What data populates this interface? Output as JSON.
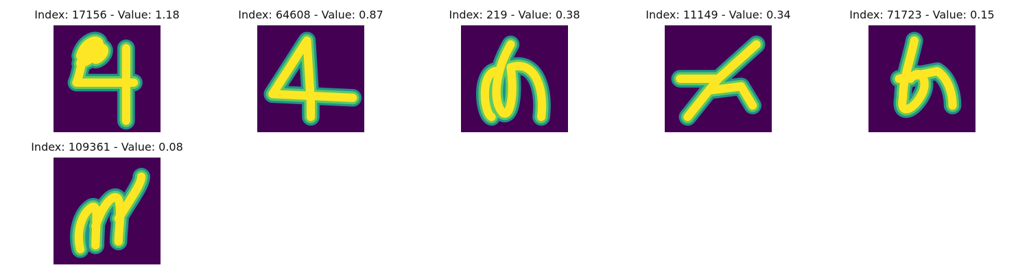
{
  "colors": {
    "background": "#440154",
    "glow_outer": "#21918c",
    "glow_mid": "#5ec962",
    "stroke": "#fde725"
  },
  "panels": [
    {
      "title": "Index: 17156 - Value: 1.18",
      "glyph": "handwritten-4-with-loop"
    },
    {
      "title": "Index: 64608 - Value: 0.87",
      "glyph": "handwritten-4"
    },
    {
      "title": "Index: 219 - Value: 0.38",
      "glyph": "hiragana-no-like"
    },
    {
      "title": "Index: 11149 - Value: 0.34",
      "glyph": "hiragana-su-like"
    },
    {
      "title": "Index: 71723 - Value: 0.15",
      "glyph": "hiragana-o-like"
    },
    {
      "title": "Index: 109361 - Value: 0.08",
      "glyph": "handwritten-m-like"
    }
  ]
}
